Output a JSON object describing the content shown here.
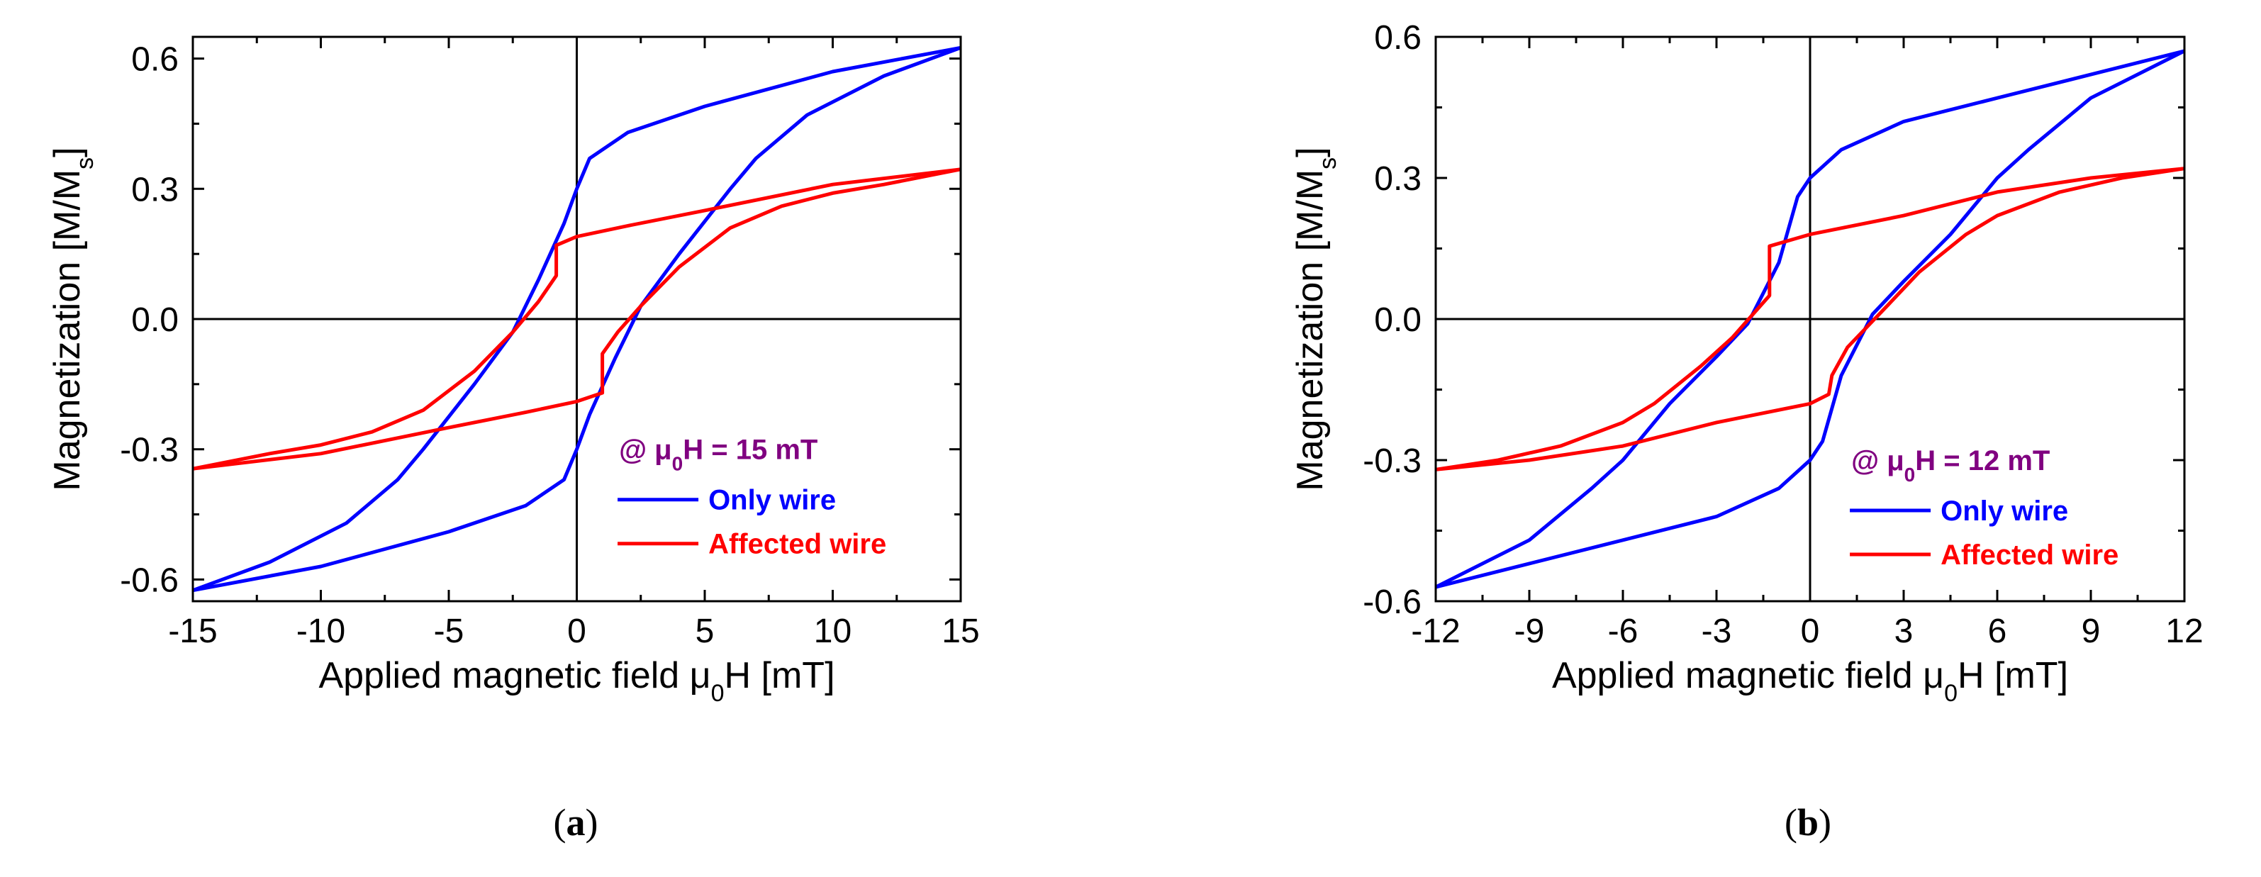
{
  "colors": {
    "blue": "#0000ff",
    "red": "#ff0000",
    "purple": "#800080",
    "axis": "#000000"
  },
  "chart_data": [
    {
      "type": "line",
      "panel": "a",
      "panel_label": {
        "open": "(",
        "letter": "a",
        "close": ")"
      },
      "xlabel": {
        "pre": "Applied magnetic field μ",
        "sub": "0",
        "post": "H [mT]"
      },
      "ylabel": {
        "pre": "Magnetization [M/M",
        "sub": "s",
        "post": "]"
      },
      "xlim": [
        -15,
        15
      ],
      "ylim": [
        -0.65,
        0.65
      ],
      "xticks": [
        -15,
        -10,
        -5,
        0,
        5,
        10,
        15
      ],
      "xtick_labels": [
        "-15",
        "-10",
        "-5",
        "0",
        "5",
        "10",
        "15"
      ],
      "yticks": [
        -0.6,
        -0.3,
        0.0,
        0.3,
        0.6
      ],
      "ytick_labels": [
        "-0.6",
        "-0.3",
        "0.0",
        "0.3",
        "0.6"
      ],
      "annotation": {
        "pre": "@ μ",
        "sub": "0",
        "post": "H = 15 mT"
      },
      "series": [
        {
          "name": "Only wire",
          "color": "#0000ff",
          "descending": {
            "x": [
              15,
              10,
              5,
              2,
              0.5,
              0,
              -0.5,
              -1.5,
              -2.5,
              -4,
              -6,
              -7,
              -9,
              -12,
              -15
            ],
            "y": [
              0.625,
              0.57,
              0.49,
              0.43,
              0.37,
              0.3,
              0.22,
              0.09,
              -0.03,
              -0.15,
              -0.3,
              -0.37,
              -0.47,
              -0.56,
              -0.625
            ]
          },
          "ascending": {
            "x": [
              -15,
              -10,
              -5,
              -2,
              -0.5,
              0,
              0.5,
              1.5,
              2.5,
              4,
              6,
              7,
              9,
              12,
              15
            ],
            "y": [
              -0.625,
              -0.57,
              -0.49,
              -0.43,
              -0.37,
              -0.3,
              -0.22,
              -0.09,
              0.03,
              0.15,
              0.3,
              0.37,
              0.47,
              0.56,
              0.625
            ]
          }
        },
        {
          "name": "Affected wire",
          "color": "#ff0000",
          "descending": {
            "x": [
              15,
              10,
              5,
              2,
              0,
              -0.8,
              -0.8,
              -1.5,
              -2.5,
              -4,
              -6,
              -8,
              -10,
              -12,
              -15
            ],
            "y": [
              0.345,
              0.31,
              0.25,
              0.215,
              0.19,
              0.17,
              0.1,
              0.04,
              -0.03,
              -0.12,
              -0.21,
              -0.26,
              -0.29,
              -0.31,
              -0.345
            ]
          },
          "ascending": {
            "x": [
              -15,
              -10,
              -5,
              -2,
              0,
              1.0,
              1.0,
              1.6,
              2.5,
              4,
              6,
              8,
              10,
              12,
              15
            ],
            "y": [
              -0.345,
              -0.31,
              -0.25,
              -0.215,
              -0.19,
              -0.17,
              -0.08,
              -0.03,
              0.03,
              0.12,
              0.21,
              0.26,
              0.29,
              0.31,
              0.345
            ]
          }
        }
      ]
    },
    {
      "type": "line",
      "panel": "b",
      "panel_label": {
        "open": "(",
        "letter": "b",
        "close": ")"
      },
      "xlabel": {
        "pre": "Applied magnetic field μ",
        "sub": "0",
        "post": "H [mT]"
      },
      "ylabel": {
        "pre": "Magnetization [M/M",
        "sub": "s",
        "post": "]"
      },
      "xlim": [
        -12,
        12
      ],
      "ylim": [
        -0.6,
        0.6
      ],
      "xticks": [
        -12,
        -9,
        -6,
        -3,
        0,
        3,
        6,
        9,
        12
      ],
      "xtick_labels": [
        "-12",
        "-9",
        "-6",
        "-3",
        "0",
        "3",
        "6",
        "9",
        "12"
      ],
      "yticks": [
        -0.6,
        -0.3,
        0.0,
        0.3,
        0.6
      ],
      "ytick_labels": [
        "-0.6",
        "-0.3",
        "0.0",
        "0.3",
        "0.6"
      ],
      "annotation": {
        "pre": "@ μ",
        "sub": "0",
        "post": "H = 12 mT"
      },
      "series": [
        {
          "name": "Only wire",
          "color": "#0000ff",
          "descending": {
            "x": [
              12,
              9,
              6,
              3,
              1,
              0,
              -0.4,
              -1,
              -2,
              -3,
              -4.5,
              -6,
              -7,
              -9,
              -12
            ],
            "y": [
              0.57,
              0.52,
              0.47,
              0.42,
              0.36,
              0.3,
              0.26,
              0.12,
              -0.01,
              -0.08,
              -0.18,
              -0.3,
              -0.36,
              -0.47,
              -0.57
            ]
          },
          "ascending": {
            "x": [
              -12,
              -9,
              -6,
              -3,
              -1,
              0,
              0.4,
              1,
              2,
              3,
              4.5,
              6,
              7,
              9,
              12
            ],
            "y": [
              -0.57,
              -0.52,
              -0.47,
              -0.42,
              -0.36,
              -0.3,
              -0.26,
              -0.12,
              0.01,
              0.08,
              0.18,
              0.3,
              0.36,
              0.47,
              0.57
            ]
          }
        },
        {
          "name": "Affected wire",
          "color": "#ff0000",
          "descending": {
            "x": [
              12,
              9,
              6,
              3,
              0,
              -1.3,
              -1.3,
              -1.7,
              -2.5,
              -3.5,
              -5,
              -6,
              -8,
              -10,
              -12
            ],
            "y": [
              0.32,
              0.3,
              0.27,
              0.22,
              0.18,
              0.155,
              0.05,
              0.02,
              -0.04,
              -0.1,
              -0.18,
              -0.22,
              -0.27,
              -0.3,
              -0.32
            ]
          },
          "ascending": {
            "x": [
              -12,
              -9,
              -6,
              -3,
              0,
              0.6,
              0.7,
              1.2,
              2.5,
              3.5,
              5,
              6,
              8,
              10,
              12
            ],
            "y": [
              -0.32,
              -0.3,
              -0.27,
              -0.22,
              -0.18,
              -0.16,
              -0.12,
              -0.06,
              0.03,
              0.1,
              0.18,
              0.22,
              0.27,
              0.3,
              0.32
            ]
          }
        }
      ]
    }
  ]
}
